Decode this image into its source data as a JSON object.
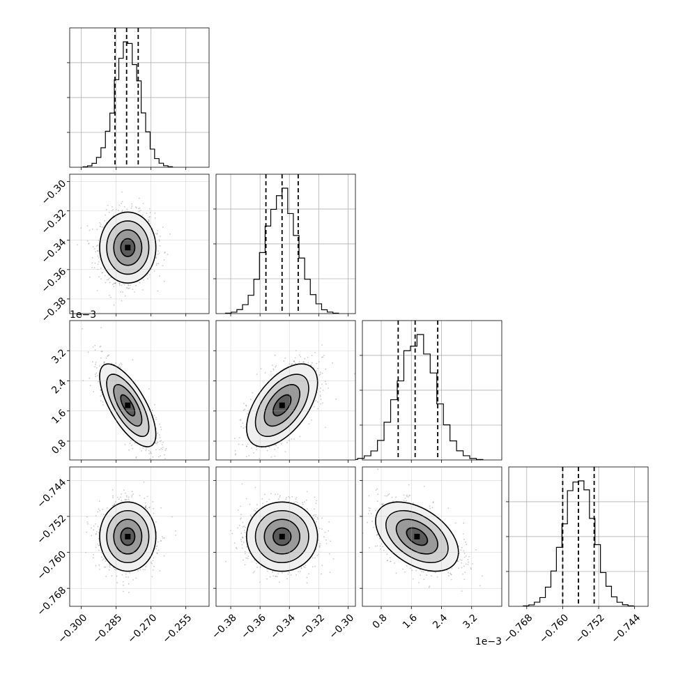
{
  "chart_data": {
    "type": "corner",
    "params": [
      {
        "range": [
          -0.305,
          -0.245
        ],
        "ticks": [
          "−0.300",
          "−0.285",
          "−0.270",
          "−0.255"
        ],
        "tick_values": [
          -0.3,
          -0.285,
          -0.27,
          -0.255
        ],
        "mean": -0.28,
        "sigma": 0.0055,
        "quantiles": [
          -0.2855,
          -0.2805,
          -0.2755
        ],
        "sci": ""
      },
      {
        "range": [
          -0.39,
          -0.295
        ],
        "ticks": [
          "−0.38",
          "−0.36",
          "−0.34",
          "−0.32",
          "−0.30"
        ],
        "tick_values": [
          -0.38,
          -0.36,
          -0.34,
          -0.32,
          -0.3
        ],
        "mean": -0.345,
        "sigma": 0.011,
        "quantiles": [
          -0.356,
          -0.345,
          -0.334
        ],
        "sci": ""
      },
      {
        "range": [
          0.3,
          4.0
        ],
        "ticks": [
          "0.8",
          "1.6",
          "2.4",
          "3.2"
        ],
        "tick_values": [
          0.8,
          1.6,
          2.4,
          3.2
        ],
        "mean": 1.75,
        "sigma": 0.5,
        "quantiles": [
          1.25,
          1.7,
          2.3
        ],
        "sci": "1e−3"
      },
      {
        "range": [
          -0.772,
          -0.741
        ],
        "ticks": [
          "−0.768",
          "−0.760",
          "−0.752",
          "−0.744"
        ],
        "tick_values": [
          -0.768,
          -0.76,
          -0.752,
          -0.744
        ],
        "mean": -0.7565,
        "sigma": 0.0035,
        "quantiles": [
          -0.76,
          -0.7565,
          -0.753
        ],
        "sci": ""
      }
    ],
    "correlations": [
      {
        "i": 1,
        "j": 0,
        "rho": 0.0
      },
      {
        "i": 2,
        "j": 0,
        "rho": -0.7
      },
      {
        "i": 2,
        "j": 1,
        "rho": 0.55
      },
      {
        "i": 3,
        "j": 0,
        "rho": 0.0
      },
      {
        "i": 3,
        "j": 1,
        "rho": 0.0
      },
      {
        "i": 3,
        "j": 2,
        "rho": -0.45
      }
    ],
    "grid": true,
    "histogram_bins": 20,
    "contour_levels_sigma": [
      0.5,
      1.0,
      1.5,
      2.0
    ]
  }
}
